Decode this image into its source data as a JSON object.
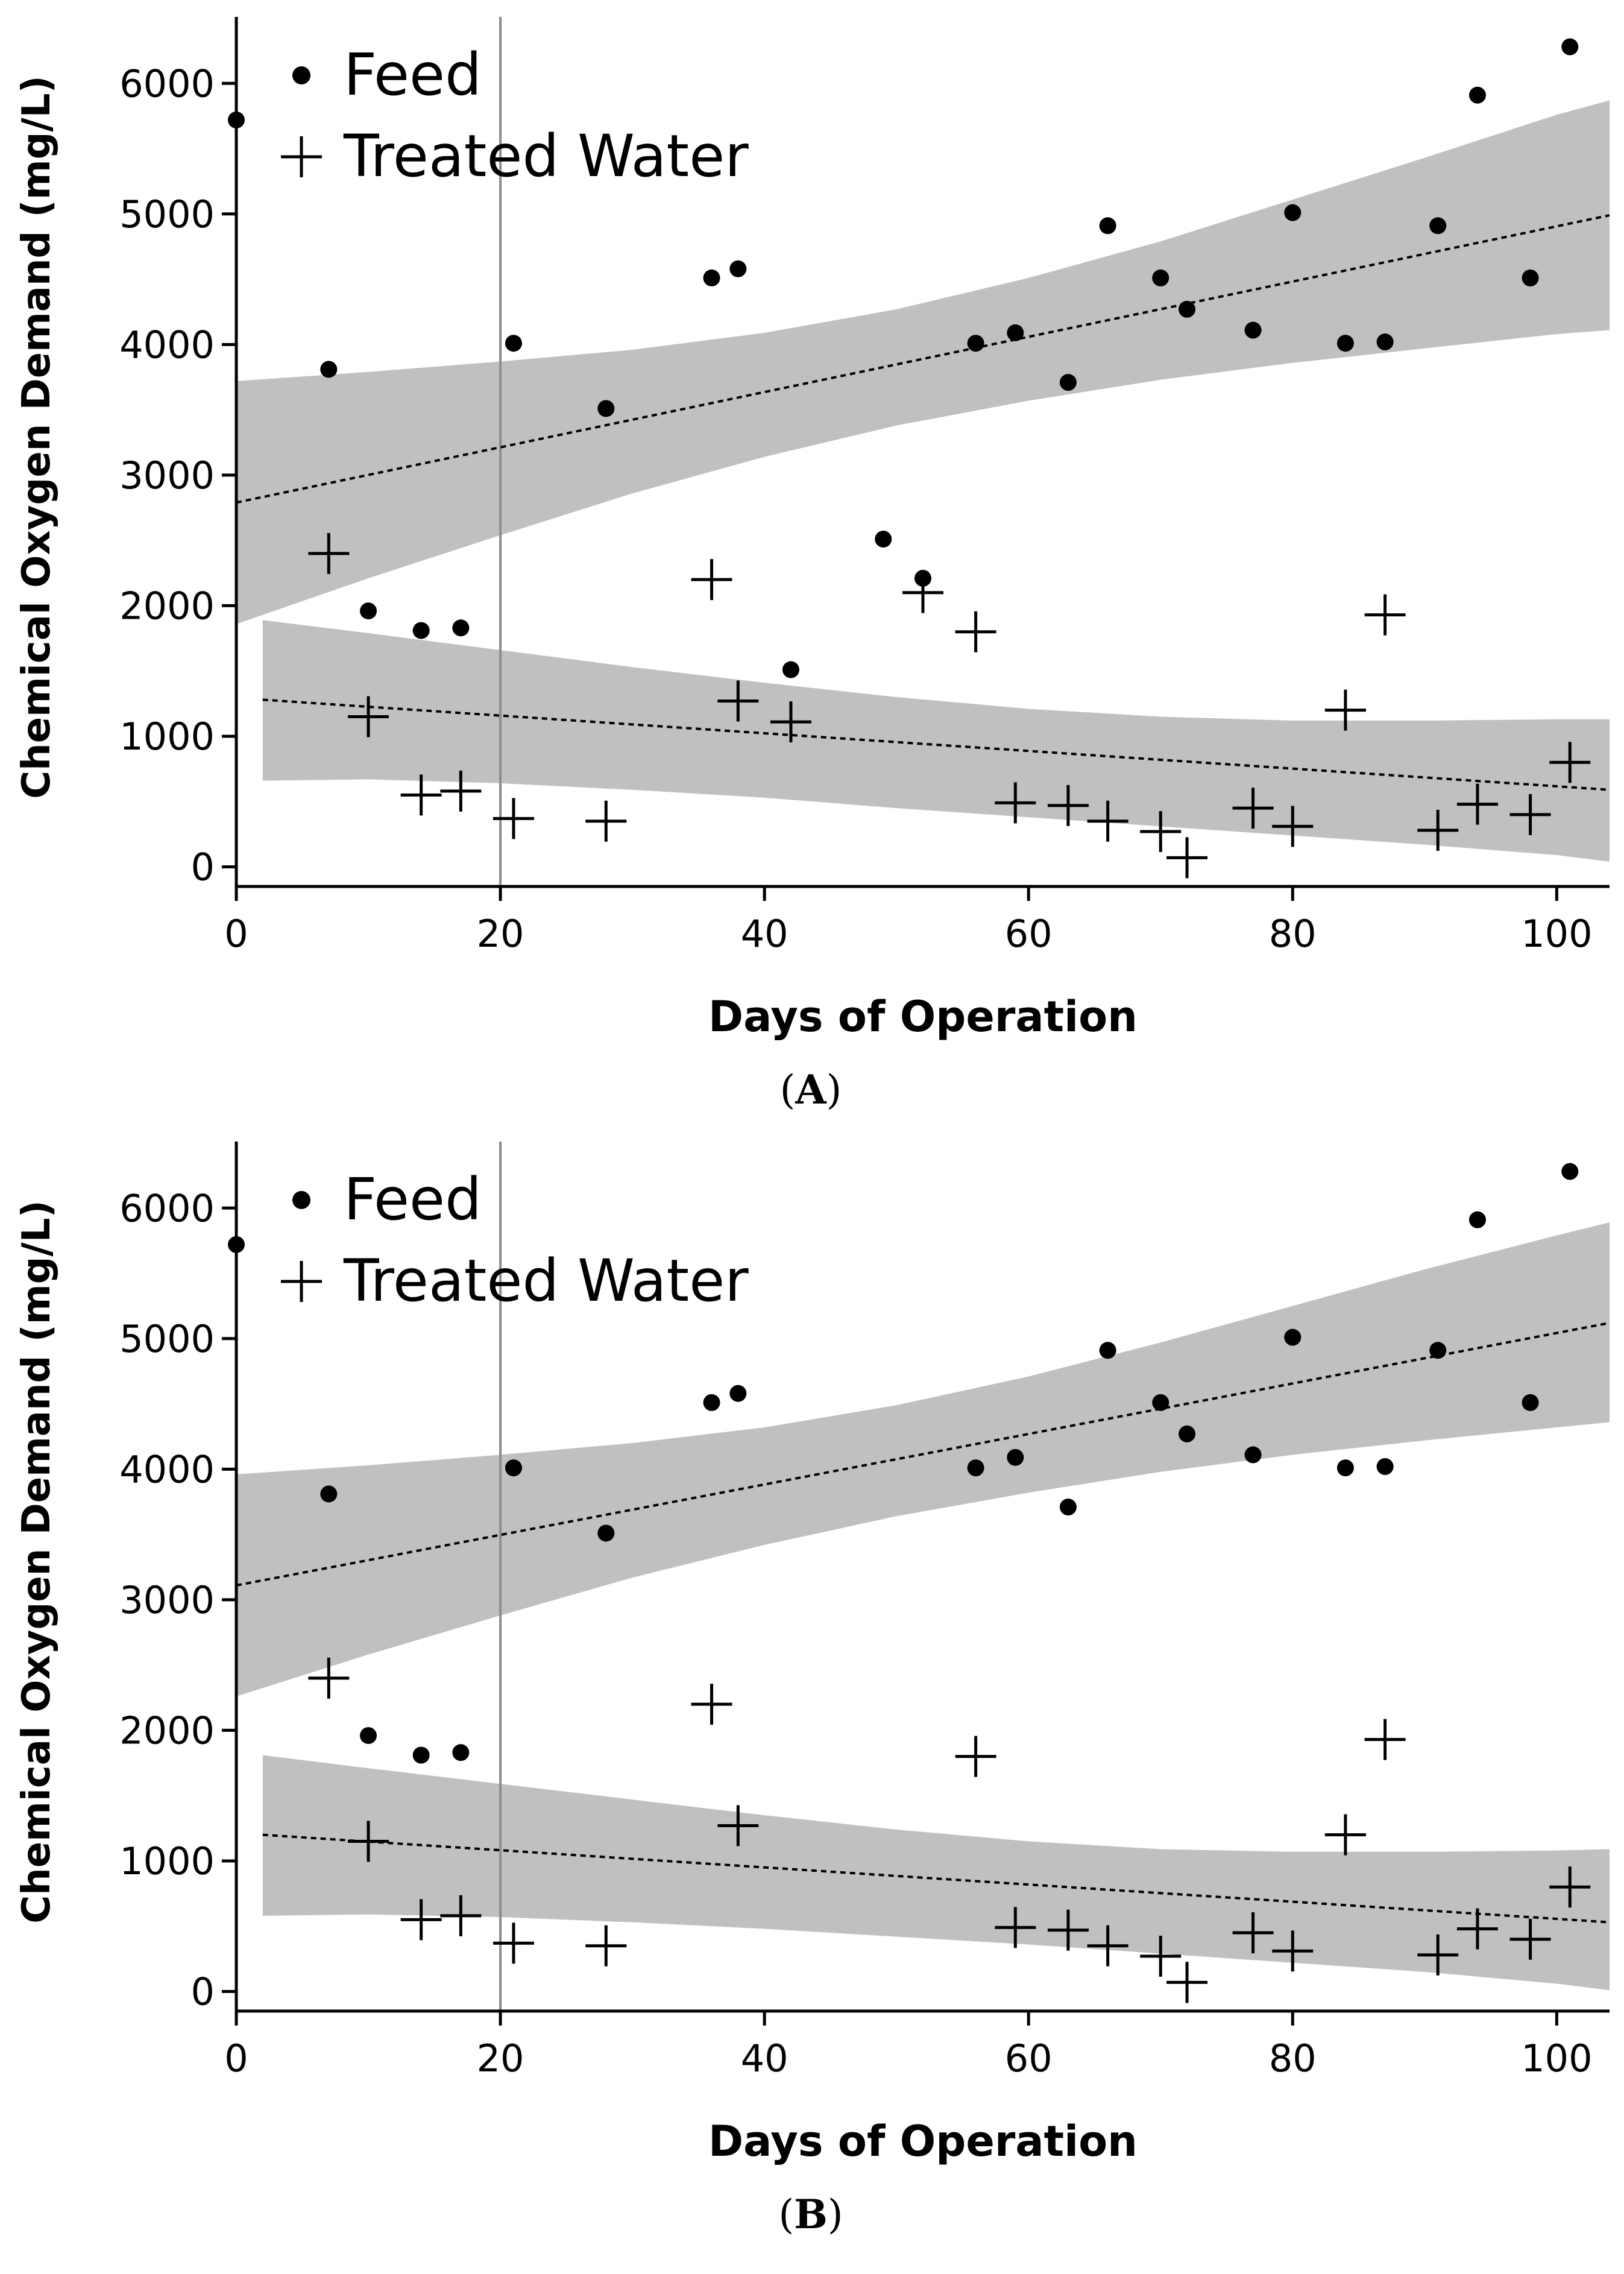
{
  "figure": {
    "panels": [
      "A",
      "B"
    ]
  },
  "colors": {
    "band": "#c0c0c0",
    "marker": "#000000",
    "vline": "#8c8c8c",
    "axis": "#000000"
  },
  "chart_data": [
    {
      "type": "scatter",
      "panel_label": "A",
      "xlabel": "Days of Operation",
      "ylabel": "Chemical Oxygen Demand (mg/L)",
      "xlim": [
        0,
        104
      ],
      "ylim": [
        -150,
        6500
      ],
      "xticks": [
        0,
        20,
        40,
        60,
        80,
        100
      ],
      "yticks": [
        0,
        1000,
        2000,
        3000,
        4000,
        5000,
        6000
      ],
      "reference_line_x": 20,
      "legend": {
        "position": "top-left",
        "entries": [
          {
            "label": "Feed",
            "marker": "dot"
          },
          {
            "label": "Treated Water",
            "marker": "plus"
          }
        ]
      },
      "series": [
        {
          "name": "Feed",
          "marker": "dot",
          "points": [
            [
              0,
              5720
            ],
            [
              7,
              3810
            ],
            [
              10,
              1960
            ],
            [
              14,
              1810
            ],
            [
              17,
              1830
            ],
            [
              21,
              4010
            ],
            [
              28,
              3510
            ],
            [
              36,
              4510
            ],
            [
              38,
              4580
            ],
            [
              42,
              1510
            ],
            [
              49,
              2510
            ],
            [
              52,
              2210
            ],
            [
              56,
              4010
            ],
            [
              59,
              4090
            ],
            [
              63,
              3710
            ],
            [
              66,
              4910
            ],
            [
              70,
              4510
            ],
            [
              72,
              4270
            ],
            [
              77,
              4110
            ],
            [
              80,
              5010
            ],
            [
              84,
              4010
            ],
            [
              87,
              4020
            ],
            [
              91,
              4910
            ],
            [
              94,
              5910
            ],
            [
              98,
              4510
            ],
            [
              101,
              6280
            ]
          ],
          "trend": {
            "x": [
              0,
              104
            ],
            "y": [
              2790,
              4990
            ]
          },
          "band": {
            "x": [
              0,
              10,
              20,
              30,
              40,
              50,
              60,
              70,
              80,
              90,
              100,
              104
            ],
            "lower": [
              1860,
              2210,
              2540,
              2860,
              3140,
              3380,
              3570,
              3730,
              3860,
              3970,
              4080,
              4110
            ],
            "upper": [
              3720,
              3790,
              3870,
              3960,
              4090,
              4270,
              4510,
              4790,
              5110,
              5430,
              5760,
              5870
            ]
          }
        },
        {
          "name": "Treated Water",
          "marker": "plus",
          "points": [
            [
              7,
              2400
            ],
            [
              10,
              1150
            ],
            [
              14,
              550
            ],
            [
              17,
              580
            ],
            [
              21,
              370
            ],
            [
              28,
              350
            ],
            [
              36,
              2200
            ],
            [
              38,
              1270
            ],
            [
              42,
              1110
            ],
            [
              52,
              2100
            ],
            [
              56,
              1800
            ],
            [
              59,
              490
            ],
            [
              63,
              470
            ],
            [
              66,
              350
            ],
            [
              70,
              270
            ],
            [
              72,
              70
            ],
            [
              77,
              450
            ],
            [
              80,
              310
            ],
            [
              84,
              1200
            ],
            [
              87,
              1930
            ],
            [
              91,
              280
            ],
            [
              94,
              480
            ],
            [
              98,
              400
            ],
            [
              101,
              800
            ]
          ],
          "trend": {
            "x": [
              2,
              104
            ],
            "y": [
              1280,
              590
            ]
          },
          "band": {
            "x": [
              2,
              10,
              20,
              30,
              40,
              50,
              60,
              70,
              80,
              90,
              100,
              104
            ],
            "lower": [
              660,
              670,
              640,
              590,
              530,
              450,
              380,
              310,
              240,
              170,
              90,
              40
            ],
            "upper": [
              1890,
              1790,
              1660,
              1530,
              1410,
              1300,
              1210,
              1150,
              1120,
              1120,
              1130,
              1130
            ]
          }
        }
      ]
    },
    {
      "type": "scatter",
      "panel_label": "B",
      "xlabel": "Days of Operation",
      "ylabel": "Chemical Oxygen Demand (mg/L)",
      "xlim": [
        0,
        104
      ],
      "ylim": [
        -150,
        6500
      ],
      "xticks": [
        0,
        20,
        40,
        60,
        80,
        100
      ],
      "yticks": [
        0,
        1000,
        2000,
        3000,
        4000,
        5000,
        6000
      ],
      "reference_line_x": 20,
      "legend": {
        "position": "top-left",
        "entries": [
          {
            "label": "Feed",
            "marker": "dot"
          },
          {
            "label": "Treated Water",
            "marker": "plus"
          }
        ]
      },
      "series": [
        {
          "name": "Feed",
          "marker": "dot",
          "points": [
            [
              0,
              5720
            ],
            [
              7,
              3810
            ],
            [
              10,
              1960
            ],
            [
              14,
              1810
            ],
            [
              17,
              1830
            ],
            [
              21,
              4010
            ],
            [
              28,
              3510
            ],
            [
              36,
              4510
            ],
            [
              38,
              4580
            ],
            [
              56,
              4010
            ],
            [
              59,
              4090
            ],
            [
              63,
              3710
            ],
            [
              66,
              4910
            ],
            [
              70,
              4510
            ],
            [
              72,
              4270
            ],
            [
              77,
              4110
            ],
            [
              80,
              5010
            ],
            [
              84,
              4010
            ],
            [
              87,
              4020
            ],
            [
              91,
              4910
            ],
            [
              94,
              5910
            ],
            [
              98,
              4510
            ],
            [
              101,
              6280
            ]
          ],
          "trend": {
            "x": [
              0,
              104
            ],
            "y": [
              3110,
              5120
            ]
          },
          "band": {
            "x": [
              0,
              10,
              20,
              30,
              40,
              50,
              60,
              70,
              80,
              90,
              100,
              104
            ],
            "lower": [
              2260,
              2580,
              2880,
              3170,
              3420,
              3640,
              3820,
              3980,
              4110,
              4220,
              4320,
              4360
            ],
            "upper": [
              3960,
              4030,
              4110,
              4200,
              4320,
              4490,
              4710,
              4970,
              5250,
              5530,
              5790,
              5890
            ]
          }
        },
        {
          "name": "Treated Water",
          "marker": "plus",
          "points": [
            [
              7,
              2400
            ],
            [
              10,
              1150
            ],
            [
              14,
              550
            ],
            [
              17,
              580
            ],
            [
              21,
              370
            ],
            [
              28,
              350
            ],
            [
              36,
              2200
            ],
            [
              38,
              1270
            ],
            [
              56,
              1800
            ],
            [
              59,
              490
            ],
            [
              63,
              470
            ],
            [
              66,
              350
            ],
            [
              70,
              270
            ],
            [
              72,
              70
            ],
            [
              77,
              450
            ],
            [
              80,
              310
            ],
            [
              84,
              1200
            ],
            [
              87,
              1930
            ],
            [
              91,
              280
            ],
            [
              94,
              480
            ],
            [
              98,
              400
            ],
            [
              101,
              800
            ]
          ],
          "trend": {
            "x": [
              2,
              104
            ],
            "y": [
              1200,
              530
            ]
          },
          "band": {
            "x": [
              2,
              10,
              20,
              30,
              40,
              50,
              60,
              70,
              80,
              90,
              100,
              104
            ],
            "lower": [
              580,
              590,
              570,
              530,
              480,
              420,
              360,
              290,
              220,
              150,
              60,
              10
            ],
            "upper": [
              1810,
              1710,
              1590,
              1470,
              1350,
              1240,
              1150,
              1090,
              1070,
              1070,
              1080,
              1090
            ]
          }
        }
      ]
    }
  ]
}
